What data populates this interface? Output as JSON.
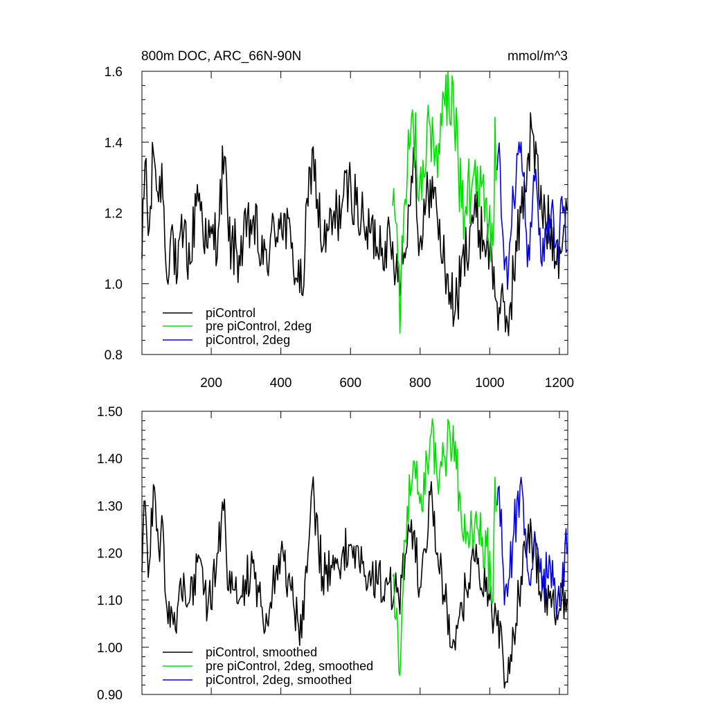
{
  "chart_data": [
    {
      "type": "line",
      "title": "800m DOC, ARC_66N-90N",
      "units": "mmol/m^3",
      "xlim": [
        1,
        1224
      ],
      "ylim": [
        0.8,
        1.6
      ],
      "x_ticks": [
        200,
        400,
        600,
        800,
        1000,
        1200
      ],
      "x_tick_labels": [
        "200",
        "400",
        "600",
        "800",
        "1000",
        "1200"
      ],
      "y_ticks": [
        0.8,
        1.0,
        1.2,
        1.4,
        1.6
      ],
      "y_tick_labels": [
        "0.8",
        "1.0",
        "1.2",
        "1.4",
        "1.6"
      ],
      "legend_position": "bottom-left",
      "series": [
        {
          "name": "piControl",
          "color": "#000000",
          "x_range": [
            1,
            1224
          ],
          "anchors": [
            [
              1,
              1.07
            ],
            [
              12,
              1.39
            ],
            [
              20,
              1.1
            ],
            [
              35,
              1.39
            ],
            [
              50,
              1.22
            ],
            [
              58,
              1.34
            ],
            [
              70,
              1.05
            ],
            [
              90,
              1.15
            ],
            [
              100,
              1.0
            ],
            [
              120,
              1.15
            ],
            [
              140,
              1.05
            ],
            [
              160,
              1.28
            ],
            [
              190,
              1.1
            ],
            [
              220,
              1.15
            ],
            [
              237,
              1.38
            ],
            [
              250,
              1.12
            ],
            [
              280,
              1.08
            ],
            [
              320,
              1.18
            ],
            [
              350,
              1.05
            ],
            [
              400,
              1.2
            ],
            [
              430,
              1.1
            ],
            [
              460,
              0.97
            ],
            [
              490,
              1.38
            ],
            [
              520,
              1.1
            ],
            [
              600,
              1.28
            ],
            [
              640,
              1.15
            ],
            [
              700,
              1.12
            ],
            [
              740,
              1.05
            ],
            [
              760,
              1.1
            ],
            [
              780,
              1.4
            ],
            [
              800,
              1.1
            ],
            [
              830,
              1.3
            ],
            [
              850,
              1.18
            ],
            [
              870,
              1.05
            ],
            [
              900,
              0.92
            ],
            [
              950,
              1.2
            ],
            [
              1000,
              1.1
            ],
            [
              1020,
              0.95
            ],
            [
              1050,
              0.88
            ],
            [
              1090,
              1.2
            ],
            [
              1120,
              1.44
            ],
            [
              1150,
              1.2
            ],
            [
              1200,
              1.1
            ],
            [
              1224,
              1.2
            ]
          ],
          "amplitude": 0.09
        },
        {
          "name": "pre piControl, 2deg",
          "color": "#00e000",
          "x_range": [
            721,
            1020
          ],
          "anchors": [
            [
              721,
              1.22
            ],
            [
              735,
              1.1
            ],
            [
              742,
              0.86
            ],
            [
              755,
              1.25
            ],
            [
              780,
              1.45
            ],
            [
              800,
              1.28
            ],
            [
              830,
              1.45
            ],
            [
              850,
              1.3
            ],
            [
              870,
              1.5
            ],
            [
              895,
              1.56
            ],
            [
              920,
              1.2
            ],
            [
              950,
              1.28
            ],
            [
              990,
              1.25
            ],
            [
              1010,
              1.1
            ],
            [
              1015,
              1.47
            ],
            [
              1020,
              1.3
            ]
          ],
          "amplitude": 0.1
        },
        {
          "name": "piControl, 2deg",
          "color": "#0000e0",
          "x_range": [
            1021,
            1224
          ],
          "anchors": [
            [
              1021,
              1.32
            ],
            [
              1025,
              1.38
            ],
            [
              1040,
              1.1
            ],
            [
              1050,
              0.97
            ],
            [
              1070,
              1.25
            ],
            [
              1090,
              1.4
            ],
            [
              1110,
              1.1
            ],
            [
              1130,
              1.3
            ],
            [
              1150,
              1.05
            ],
            [
              1170,
              1.2
            ],
            [
              1190,
              1.1
            ],
            [
              1210,
              1.2
            ],
            [
              1224,
              1.15
            ]
          ],
          "amplitude": 0.09
        }
      ]
    },
    {
      "type": "line",
      "title": "",
      "units": "",
      "xlim": [
        1,
        1224
      ],
      "ylim": [
        0.9,
        1.5
      ],
      "x_ticks": [
        200,
        400,
        600,
        800,
        1000,
        1200
      ],
      "y_ticks": [
        0.9,
        1.0,
        1.1,
        1.2,
        1.3,
        1.4,
        1.5
      ],
      "y_tick_labels": [
        "0.90",
        "1.00",
        "1.10",
        "1.20",
        "1.30",
        "1.40",
        "1.50"
      ],
      "legend_position": "bottom-left",
      "series": [
        {
          "name": "piControl, smoothed",
          "color": "#000000",
          "x_range": [
            1,
            1224
          ],
          "anchors": [
            [
              1,
              1.16
            ],
            [
              10,
              1.31
            ],
            [
              20,
              1.13
            ],
            [
              35,
              1.36
            ],
            [
              50,
              1.2
            ],
            [
              60,
              1.28
            ],
            [
              70,
              1.1
            ],
            [
              90,
              1.05
            ],
            [
              100,
              1.03
            ],
            [
              120,
              1.16
            ],
            [
              140,
              1.1
            ],
            [
              160,
              1.18
            ],
            [
              190,
              1.08
            ],
            [
              220,
              1.2
            ],
            [
              237,
              1.33
            ],
            [
              250,
              1.12
            ],
            [
              280,
              1.1
            ],
            [
              320,
              1.18
            ],
            [
              350,
              1.05
            ],
            [
              400,
              1.2
            ],
            [
              430,
              1.12
            ],
            [
              460,
              1.02
            ],
            [
              490,
              1.34
            ],
            [
              520,
              1.15
            ],
            [
              600,
              1.22
            ],
            [
              640,
              1.15
            ],
            [
              700,
              1.14
            ],
            [
              740,
              1.1
            ],
            [
              760,
              1.2
            ],
            [
              780,
              1.25
            ],
            [
              800,
              1.12
            ],
            [
              830,
              1.33
            ],
            [
              850,
              1.2
            ],
            [
              870,
              1.1
            ],
            [
              900,
              0.99
            ],
            [
              950,
              1.2
            ],
            [
              1000,
              1.1
            ],
            [
              1020,
              1.05
            ],
            [
              1050,
              0.92
            ],
            [
              1090,
              1.15
            ],
            [
              1120,
              1.24
            ],
            [
              1150,
              1.12
            ],
            [
              1200,
              1.08
            ],
            [
              1224,
              1.13
            ]
          ],
          "amplitude": 0.05
        },
        {
          "name": "pre piControl, 2deg, smoothed",
          "color": "#00e000",
          "x_range": [
            721,
            1020
          ],
          "anchors": [
            [
              721,
              1.15
            ],
            [
              735,
              1.05
            ],
            [
              742,
              0.94
            ],
            [
              755,
              1.25
            ],
            [
              780,
              1.4
            ],
            [
              800,
              1.3
            ],
            [
              830,
              1.45
            ],
            [
              850,
              1.35
            ],
            [
              870,
              1.4
            ],
            [
              895,
              1.47
            ],
            [
              920,
              1.25
            ],
            [
              950,
              1.25
            ],
            [
              990,
              1.22
            ],
            [
              1010,
              1.09
            ],
            [
              1015,
              1.36
            ],
            [
              1020,
              1.28
            ]
          ],
          "amplitude": 0.06
        },
        {
          "name": "piControl, 2deg, smoothed",
          "color": "#0000e0",
          "x_range": [
            1021,
            1224
          ],
          "anchors": [
            [
              1021,
              1.3
            ],
            [
              1025,
              1.35
            ],
            [
              1040,
              1.15
            ],
            [
              1050,
              1.1
            ],
            [
              1070,
              1.25
            ],
            [
              1090,
              1.36
            ],
            [
              1110,
              1.15
            ],
            [
              1130,
              1.25
            ],
            [
              1150,
              1.12
            ],
            [
              1170,
              1.2
            ],
            [
              1190,
              1.1
            ],
            [
              1210,
              1.18
            ],
            [
              1224,
              1.22
            ]
          ],
          "amplitude": 0.06
        }
      ]
    }
  ]
}
